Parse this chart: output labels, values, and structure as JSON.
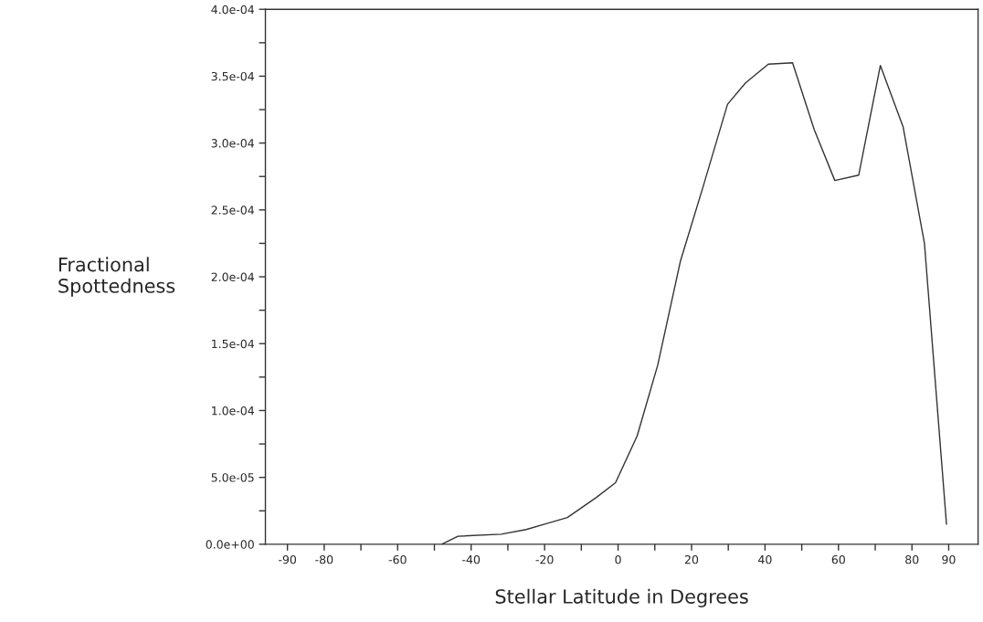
{
  "chart_data": {
    "type": "line",
    "xlabel": "Stellar Latitude in Degrees",
    "ylabel": "Fractional\nSpottedness",
    "series": [
      {
        "color": "#333333",
        "x": [
          -48,
          -43.6,
          -31.8,
          -25,
          -20,
          -13.8,
          -5.9,
          -0.7,
          5.2,
          10.8,
          17,
          23,
          29.8,
          34.7,
          40.9,
          47.5,
          53.4,
          59,
          65.5,
          71.4,
          77.6,
          83.4,
          89.4
        ],
        "values": [
          0,
          6e-06,
          7.5e-06,
          1.1e-05,
          1.5e-05,
          2e-05,
          3.5e-05,
          4.6e-05,
          8.1e-05,
          0.000134,
          0.000212,
          0.000266,
          0.000329,
          0.000345,
          0.000359,
          0.00036,
          0.00031,
          0.000272,
          0.000276,
          0.000358,
          0.000312,
          0.000225,
          1.5e-05
        ]
      }
    ],
    "xlim": [
      -96,
      98
    ],
    "ylim": [
      0,
      0.0004
    ],
    "xticks": [
      -90,
      -80,
      {
        "value": -70,
        "label": null
      },
      -60,
      {
        "value": -50,
        "label": null
      },
      -40,
      {
        "value": -30,
        "label": null
      },
      -20,
      {
        "value": -10,
        "label": null
      },
      0,
      {
        "value": 10,
        "label": null
      },
      20,
      {
        "value": 30,
        "label": null
      },
      40,
      {
        "value": 50,
        "label": null
      },
      60,
      {
        "value": 70,
        "label": null
      },
      80,
      90
    ],
    "yticks": [
      {
        "value": 0,
        "label": "0.0e+00"
      },
      {
        "value": 2.5e-05,
        "label": null
      },
      {
        "value": 5e-05,
        "label": "5.0e-05"
      },
      {
        "value": 7.5e-05,
        "label": null
      },
      {
        "value": 0.0001,
        "label": "1.0e-04"
      },
      {
        "value": 0.000125,
        "label": null
      },
      {
        "value": 0.00015,
        "label": "1.5e-04"
      },
      {
        "value": 0.000175,
        "label": null
      },
      {
        "value": 0.0002,
        "label": "2.0e-04"
      },
      {
        "value": 0.000225,
        "label": null
      },
      {
        "value": 0.00025,
        "label": "2.5e-04"
      },
      {
        "value": 0.000275,
        "label": null
      },
      {
        "value": 0.0003,
        "label": "3.0e-04"
      },
      {
        "value": 0.000325,
        "label": null
      },
      {
        "value": 0.00035,
        "label": "3.5e-04"
      },
      {
        "value": 0.000375,
        "label": null
      },
      {
        "value": 0.0004,
        "label": "4.0e-04"
      }
    ],
    "grid": false,
    "legend": false,
    "marker": "none",
    "line_style": "solid"
  }
}
